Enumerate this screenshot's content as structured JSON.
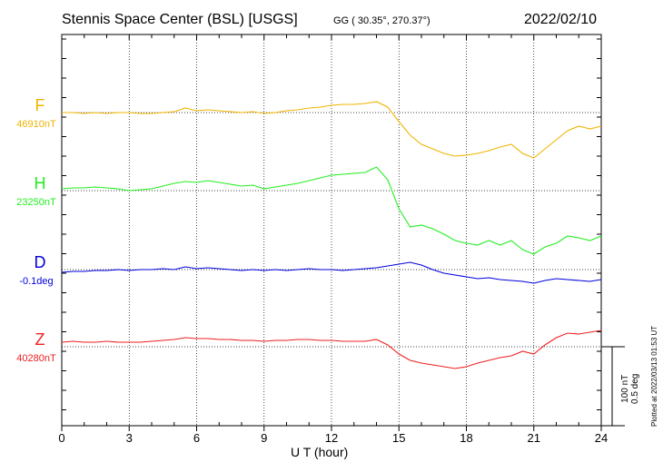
{
  "header": {
    "title": "Stennis Space Center (BSL)  [USGS]",
    "coords": "GG ( 30.35°, 270.37°)",
    "date": "2022/02/10"
  },
  "footer": {
    "plotted": "Plotted at 2022/03/13 01:53 UT",
    "scale_nt": "100 nT",
    "scale_deg": "0.5 deg"
  },
  "chart_data": {
    "type": "line",
    "title": "Stennis Space Center (BSL)  [USGS]",
    "xlabel": "U T (hour)",
    "ylabel": "",
    "xlim": [
      0,
      24
    ],
    "xticks": [
      0,
      3,
      6,
      9,
      12,
      15,
      18,
      21,
      24
    ],
    "grid": true,
    "scale_bar": "100 nT / 0.5 deg",
    "series": [
      {
        "name": "F",
        "baseline_label": "46910nT",
        "color": "#f0b400",
        "x": [
          0,
          0.5,
          1,
          1.5,
          2,
          2.5,
          3,
          3.5,
          4,
          4.5,
          5,
          5.5,
          6,
          6.5,
          7,
          7.5,
          8,
          8.5,
          9,
          9.5,
          10,
          10.5,
          11,
          11.5,
          12,
          12.5,
          13,
          13.5,
          14,
          14.5,
          15,
          15.5,
          16,
          16.5,
          17,
          17.5,
          18,
          18.5,
          19,
          19.5,
          20,
          20.5,
          21,
          21.5,
          22,
          22.5,
          23,
          23.5,
          24
        ],
        "y": [
          0,
          0,
          -1,
          0,
          -1,
          0,
          0,
          -1,
          -1,
          0,
          1,
          5,
          2,
          3,
          2,
          1,
          0,
          1,
          -1,
          0,
          2,
          3,
          5,
          6,
          8,
          9,
          9,
          10,
          12,
          6,
          -10,
          -25,
          -35,
          -40,
          -45,
          -48,
          -47,
          -45,
          -42,
          -38,
          -35,
          -45,
          -50,
          -40,
          -30,
          -20,
          -15,
          -18,
          -15
        ]
      },
      {
        "name": "H",
        "baseline_label": "23250nT",
        "color": "#22ee22",
        "x": [
          0,
          0.5,
          1,
          1.5,
          2,
          2.5,
          3,
          3.5,
          4,
          4.5,
          5,
          5.5,
          6,
          6.5,
          7,
          7.5,
          8,
          8.5,
          9,
          9.5,
          10,
          10.5,
          11,
          11.5,
          12,
          12.5,
          13,
          13.5,
          14,
          14.5,
          15,
          15.5,
          16,
          16.5,
          17,
          17.5,
          18,
          18.5,
          19,
          19.5,
          20,
          20.5,
          21,
          21.5,
          22,
          22.5,
          23,
          23.5,
          24
        ],
        "y": [
          2,
          3,
          3,
          4,
          3,
          2,
          0,
          1,
          2,
          5,
          8,
          10,
          9,
          11,
          9,
          7,
          5,
          6,
          2,
          4,
          6,
          8,
          11,
          14,
          17,
          18,
          19,
          20,
          26,
          12,
          -20,
          -40,
          -38,
          -42,
          -48,
          -55,
          -58,
          -60,
          -55,
          -60,
          -55,
          -65,
          -70,
          -62,
          -58,
          -50,
          -52,
          -55,
          -50
        ]
      },
      {
        "name": "D",
        "baseline_label": "-0.1deg",
        "color": "#0000dd",
        "x": [
          0,
          0.5,
          1,
          1.5,
          2,
          2.5,
          3,
          3.5,
          4,
          4.5,
          5,
          5.5,
          6,
          6.5,
          7,
          7.5,
          8,
          8.5,
          9,
          9.5,
          10,
          10.5,
          11,
          11.5,
          12,
          12.5,
          13,
          13.5,
          14,
          14.5,
          15,
          15.5,
          16,
          16.5,
          17,
          17.5,
          18,
          18.5,
          19,
          19.5,
          20,
          20.5,
          21,
          21.5,
          22,
          22.5,
          23,
          23.5,
          24
        ],
        "y": [
          -3,
          -2,
          -2,
          -1,
          -1,
          0,
          -1,
          0,
          0,
          1,
          0,
          3,
          1,
          2,
          1,
          0,
          -1,
          0,
          -1,
          0,
          -1,
          0,
          1,
          0,
          0,
          -1,
          0,
          1,
          2,
          4,
          6,
          8,
          5,
          0,
          -4,
          -6,
          -8,
          -10,
          -9,
          -11,
          -12,
          -13,
          -15,
          -12,
          -10,
          -11,
          -12,
          -13,
          -11
        ]
      },
      {
        "name": "Z",
        "baseline_label": "40280nT",
        "color": "#ee2020",
        "x": [
          0,
          0.5,
          1,
          1.5,
          2,
          2.5,
          3,
          3.5,
          4,
          4.5,
          5,
          5.5,
          6,
          6.5,
          7,
          7.5,
          8,
          8.5,
          9,
          9.5,
          10,
          10.5,
          11,
          11.5,
          12,
          12.5,
          13,
          13.5,
          14,
          14.5,
          15,
          15.5,
          16,
          16.5,
          17,
          17.5,
          18,
          18.5,
          19,
          19.5,
          20,
          20.5,
          21,
          21.5,
          22,
          22.5,
          23,
          23.5,
          24
        ],
        "y": [
          5,
          6,
          5,
          5,
          6,
          5,
          5,
          5,
          6,
          7,
          8,
          10,
          9,
          9,
          8,
          8,
          7,
          7,
          6,
          7,
          7,
          8,
          8,
          7,
          7,
          6,
          6,
          6,
          8,
          2,
          -8,
          -15,
          -18,
          -20,
          -22,
          -24,
          -22,
          -18,
          -15,
          -12,
          -10,
          -5,
          -8,
          2,
          10,
          15,
          14,
          16,
          18
        ]
      }
    ]
  }
}
